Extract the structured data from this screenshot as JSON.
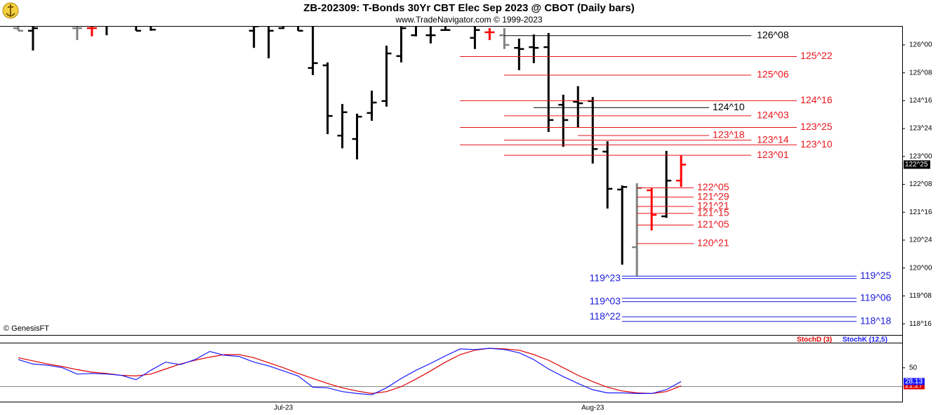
{
  "chart_data": [
    {
      "type": "ohlc",
      "title": "ZB-202309:  T-Bonds 30Yr CBT Elec Sep 2023 @ CBOT  (Daily bars)",
      "subtitle": "www.TradeNavigator.com © 1999-2023",
      "annotation": "© GenesisFT",
      "categories": [
        null,
        null,
        null,
        null,
        null,
        null,
        null,
        null,
        null,
        null,
        null,
        null,
        null,
        null,
        null,
        null,
        null,
        null,
        "Jul-23",
        null,
        null,
        null,
        null,
        null,
        null,
        null,
        null,
        null,
        null,
        null,
        null,
        null,
        null,
        null,
        null,
        null,
        null,
        null,
        null,
        "Aug-23",
        null,
        null,
        null,
        null,
        null,
        null
      ],
      "open": [
        126.45,
        126.38,
        null,
        null,
        126.45,
        126.45,
        126.55,
        null,
        126.6,
        126.55,
        null,
        null,
        null,
        null,
        null,
        null,
        126.38,
        126.6,
        126.45,
        126.6,
        125.38,
        125.45,
        123.56,
        123.47,
        124.17,
        124.49,
        125.7,
        126.26,
        126.26,
        126.4,
        null,
        126.19,
        126.34,
        126.26,
        125.92,
        125.94,
        125.94,
        124.39,
        124.47,
        124.49,
        123.13,
        122.11,
        120.56,
        122.09,
        121.39,
        122.35
      ],
      "high": [
        126.6,
        126.6,
        null,
        null,
        126.6,
        126.6,
        126.6,
        null,
        126.7,
        126.7,
        null,
        null,
        null,
        null,
        null,
        null,
        126.7,
        126.7,
        126.7,
        126.7,
        126.6,
        125.53,
        124.41,
        124.15,
        124.77,
        125.98,
        126.6,
        126.7,
        126.7,
        126.7,
        null,
        126.55,
        126.45,
        126.45,
        126.17,
        126.28,
        126.32,
        124.66,
        124.89,
        124.6,
        123.41,
        122.22,
        122.28,
        122.16,
        123.15,
        123.03
      ],
      "low": [
        126.38,
        125.85,
        null,
        null,
        126.13,
        126.23,
        126.26,
        null,
        126.38,
        126.38,
        null,
        null,
        null,
        null,
        null,
        null,
        125.92,
        125.64,
        126.43,
        126.38,
        125.19,
        123.6,
        123.22,
        122.92,
        123.96,
        124.34,
        125.53,
        126.23,
        126.04,
        126.38,
        null,
        125.89,
        126.13,
        125.89,
        125.32,
        125.51,
        123.66,
        123.26,
        123.79,
        122.81,
        121.6,
        120.09,
        119.78,
        121.01,
        121.35,
        122.18
      ],
      "close": [
        126.38,
        126.45,
        null,
        null,
        126.45,
        126.45,
        126.55,
        null,
        126.38,
        126.41,
        null,
        null,
        null,
        null,
        null,
        null,
        126.5,
        126.38,
        126.6,
        126.38,
        125.51,
        124.09,
        124.19,
        124.07,
        124.45,
        125.77,
        126.45,
        126.6,
        126.26,
        126.4,
        null,
        126.4,
        126.34,
        126.0,
        125.89,
        125.92,
        123.98,
        123.98,
        124.43,
        123.2,
        122.13,
        122.18,
        122.15,
        121.43,
        122.35,
        122.78
      ],
      "colors": [
        "#808080",
        "#000000",
        null,
        null,
        "#808080",
        "#ff0000",
        "#000000",
        null,
        "#000000",
        "#000000",
        null,
        null,
        null,
        null,
        null,
        null,
        "#000000",
        "#000000",
        "#000000",
        "#000000",
        "#000000",
        "#000000",
        "#000000",
        "#000000",
        "#000000",
        "#000000",
        "#000000",
        "#000000",
        "#000000",
        "#000000",
        null,
        "#000000",
        "#ff0000",
        "#808080",
        "#000000",
        "#000000",
        "#000000",
        "#000000",
        "#000000",
        "#000000",
        "#000000",
        "#000000",
        "#808080",
        "#ff0000",
        "#000000",
        "#ff0000"
      ],
      "ylim": [
        118.2,
        126.49
      ],
      "yticks": [
        {
          "value": 126,
          "label": "126^00"
        },
        {
          "value": 125.25,
          "label": "125^08"
        },
        {
          "value": 124.5,
          "label": "124^16"
        },
        {
          "value": 123.75,
          "label": "123^24"
        },
        {
          "value": 123,
          "label": "123^00"
        },
        {
          "value": 122.25,
          "label": "122^08"
        },
        {
          "value": 121.5,
          "label": "121^16"
        },
        {
          "value": 120.75,
          "label": "120^24"
        },
        {
          "value": 120,
          "label": "120^00"
        },
        {
          "value": 119.25,
          "label": "119^08"
        },
        {
          "value": 118.5,
          "label": "118^16"
        }
      ],
      "last_price": {
        "value": 122.78125,
        "label": "122^25"
      },
      "levels": [
        {
          "value": 126.25,
          "label": "126^08",
          "color": "#000000"
        },
        {
          "value": 125.6875,
          "label": "125^22",
          "color": "#e8141a"
        },
        {
          "value": 125.1875,
          "label": "125^06",
          "color": "#e8141a"
        },
        {
          "value": 124.5,
          "label": "124^16",
          "color": "#e8141a"
        },
        {
          "value": 124.3125,
          "label": "124^10",
          "color": "#000000"
        },
        {
          "value": 124.09375,
          "label": "124^03",
          "color": "#e8141a"
        },
        {
          "value": 123.78125,
          "label": "123^25",
          "color": "#e8141a"
        },
        {
          "value": 123.5625,
          "label": "123^18",
          "color": "#e8141a"
        },
        {
          "value": 123.4375,
          "label": "123^14",
          "color": "#e8141a"
        },
        {
          "value": 123.3125,
          "label": "123^10",
          "color": "#e8141a"
        },
        {
          "value": 123.03125,
          "label": "123^01",
          "color": "#e8141a"
        },
        {
          "value": 122.15625,
          "label": "122^05",
          "color": "#e8141a"
        },
        {
          "value": 121.90625,
          "label": "121^29",
          "color": "#e8141a"
        },
        {
          "value": 121.65625,
          "label": "121^21",
          "color": "#e8141a"
        },
        {
          "value": 121.46875,
          "label": "121^15",
          "color": "#e8141a"
        },
        {
          "value": 121.15625,
          "label": "121^05",
          "color": "#e8141a"
        },
        {
          "value": 120.65625,
          "label": "120^21",
          "color": "#e8141a"
        },
        {
          "value": 119.78125,
          "label": "119^25",
          "color": "#1c1cdc"
        },
        {
          "value": 119.71875,
          "label": "119^23",
          "color": "#1c1cdc"
        },
        {
          "value": 119.1875,
          "label": "119^06",
          "color": "#1c1cdc"
        },
        {
          "value": 119.09375,
          "label": "119^03",
          "color": "#1c1cdc"
        },
        {
          "value": 118.5625,
          "label": "118^18",
          "color": "#1c1cdc"
        },
        {
          "value": 118.6875,
          "label": "118^22",
          "color": "#1c1cdc"
        }
      ]
    },
    {
      "type": "line",
      "ylim": [
        -4,
        90
      ],
      "yticks": [
        50
      ],
      "reference_line": 20,
      "series": [
        {
          "name": "StochD (3)",
          "color": "#e00000",
          "values": [
            66,
            61,
            56,
            52,
            47,
            43,
            41,
            38,
            37,
            40,
            48,
            56,
            62,
            67,
            71,
            71,
            66,
            58,
            50,
            41,
            33,
            25,
            18,
            13,
            9,
            12,
            20,
            32,
            45,
            59,
            71,
            78,
            81,
            80,
            78,
            71,
            62,
            50,
            38,
            28,
            19,
            13,
            10,
            9,
            12,
            21.27
          ]
        },
        {
          "name": "StochK (12,5)",
          "color": "#1a1aff",
          "values": [
            63,
            56,
            54,
            50,
            40,
            41,
            40,
            38,
            31,
            46,
            59,
            55,
            63,
            76,
            70,
            68,
            59,
            53,
            45,
            37,
            19,
            18,
            12,
            9,
            7,
            18,
            33,
            46,
            57,
            69,
            80,
            79,
            81,
            79,
            74,
            63,
            48,
            36,
            25,
            15,
            10,
            10,
            9,
            9,
            15,
            28.13
          ]
        }
      ]
    }
  ]
}
